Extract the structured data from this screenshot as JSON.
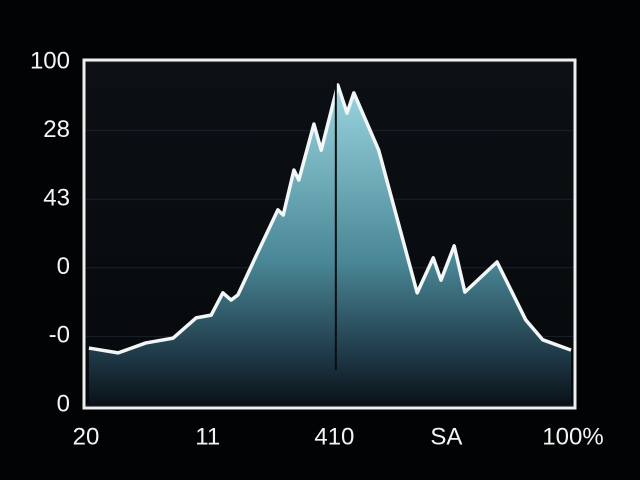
{
  "chart_data": {
    "type": "area",
    "x": [
      0.6,
      6.6,
      12.3,
      17.9,
      22.6,
      25.7,
      28.1,
      29.8,
      31.2,
      35.5,
      39.4,
      40.5,
      42.7,
      43.7,
      46.8,
      48.3,
      51.7,
      53.6,
      55.0,
      60.1,
      68.0,
      71.3,
      72.9,
      75.6,
      77.8,
      84.4,
      90.3,
      93.8,
      99.6
    ],
    "series": [
      {
        "color": "#8ccbd6",
        "line_color": "#f2f6f7",
        "values": [
          16.6,
          15.2,
          18.1,
          19.5,
          25.4,
          26.2,
          32.7,
          30.6,
          32.1,
          45.2,
          56.9,
          55.4,
          68.5,
          65.6,
          81.9,
          74.3,
          93.3,
          85.1,
          91.0,
          74.3,
          32.7,
          42.9,
          36.4,
          46.4,
          32.9,
          41.7,
          24.8,
          19.0,
          16.0
        ]
      }
    ],
    "xlim": [
      0,
      100
    ],
    "xticks": [
      {
        "value": 0,
        "label": "20"
      },
      {
        "value": 25,
        "label": "11"
      },
      {
        "value": 51,
        "label": "410"
      },
      {
        "value": 74,
        "label": "SA"
      },
      {
        "value": 100,
        "label": "100%"
      }
    ],
    "ylim": [
      0,
      100
    ],
    "yticks": [
      0,
      {
        "value": 20,
        "label": "-0"
      },
      {
        "value": 40,
        "label": "0"
      },
      {
        "value": 60,
        "label": "43"
      },
      {
        "value": 80,
        "label": "28"
      },
      {
        "value": 100,
        "label": "100"
      }
    ],
    "grid": true,
    "marker_x": 51.3
  }
}
